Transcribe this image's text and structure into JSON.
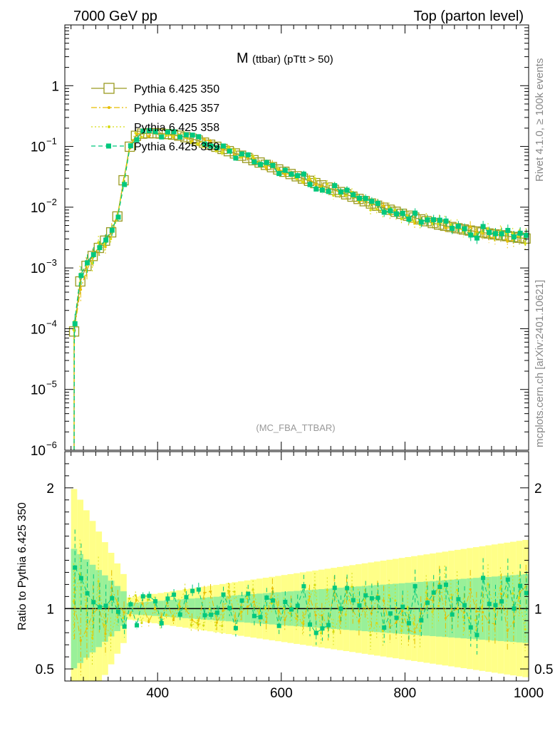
{
  "header": {
    "energy": "7000 GeV pp",
    "process": "Top (parton level)"
  },
  "side_labels": {
    "rivet": "Rivet 4.1.0, ≥ 100k events",
    "mcplots": "mcplots.cern.ch [arXiv:2401.10621]"
  },
  "chart_data": [
    {
      "type": "line",
      "panel": "main",
      "title_main": "M",
      "title_sub": "(ttbar) (pTtt > 50)",
      "watermark": "(MC_FBA_TTBAR)",
      "yscale": "log",
      "xlim": [
        250,
        1000
      ],
      "ylim": [
        1e-06,
        10
      ],
      "xticks": [
        400,
        600,
        800,
        1000
      ],
      "yticks": [
        {
          "value": 1,
          "base": "1",
          "exp": ""
        },
        {
          "value": 0.1,
          "base": "10",
          "exp": "−1"
        },
        {
          "value": 0.01,
          "base": "10",
          "exp": "−2"
        },
        {
          "value": 0.001,
          "base": "10",
          "exp": "−3"
        },
        {
          "value": 0.0001,
          "base": "10",
          "exp": "−4"
        },
        {
          "value": 1e-05,
          "base": "10",
          "exp": "−5"
        },
        {
          "value": 1e-06,
          "base": "10",
          "exp": "−6"
        }
      ],
      "knots": {
        "x": [
          265,
          270,
          280,
          290,
          300,
          310,
          320,
          330,
          340,
          350,
          360,
          370,
          380,
          400,
          430,
          460,
          500,
          550,
          600,
          650,
          700,
          750,
          800,
          850,
          900,
          950,
          1000
        ],
        "y": [
          9e-05,
          0.0004,
          0.0009,
          0.0013,
          0.0019,
          0.0024,
          0.0033,
          0.0045,
          0.011,
          0.07,
          0.14,
          0.16,
          0.165,
          0.165,
          0.155,
          0.13,
          0.095,
          0.062,
          0.04,
          0.026,
          0.017,
          0.011,
          0.0075,
          0.0053,
          0.0042,
          0.0035,
          0.003
        ]
      },
      "legend": [
        "Pythia 6.425 350",
        "Pythia 6.425 357",
        "Pythia 6.425 358",
        "Pythia 6.425 359"
      ],
      "series": [
        {
          "name": "Pythia 6.425 350",
          "color": "#9a9a20",
          "style": "solid",
          "marker": "open-square",
          "seed": 1,
          "noise": 0.0,
          "offset": 0
        },
        {
          "name": "Pythia 6.425 357",
          "color": "#e6be00",
          "style": "dashdot",
          "marker": "dot",
          "seed": 7,
          "noise": 0.1,
          "offset": 2
        },
        {
          "name": "Pythia 6.425 358",
          "color": "#d7dc14",
          "style": "dotted",
          "marker": "dot",
          "seed": 13,
          "noise": 0.12,
          "offset": -2
        },
        {
          "name": "Pythia 6.425 359",
          "color": "#00c87d",
          "style": "dashed",
          "marker": "filled-square",
          "seed": 23,
          "noise": 0.12,
          "offset": 4
        }
      ],
      "bins": {
        "start": 265,
        "end": 995,
        "width": 10
      }
    },
    {
      "type": "line",
      "panel": "ratio",
      "ylabel": "Ratio to Pythia 6.425 350",
      "xlim": [
        250,
        1000
      ],
      "ylim": [
        0.4,
        2.3
      ],
      "xticks": [
        400,
        600,
        800,
        1000
      ],
      "yticks": [
        0.5,
        1,
        2
      ],
      "reference": 1,
      "band_inner_color": "#99f099",
      "band_outer_color": "#ffff88"
    }
  ]
}
